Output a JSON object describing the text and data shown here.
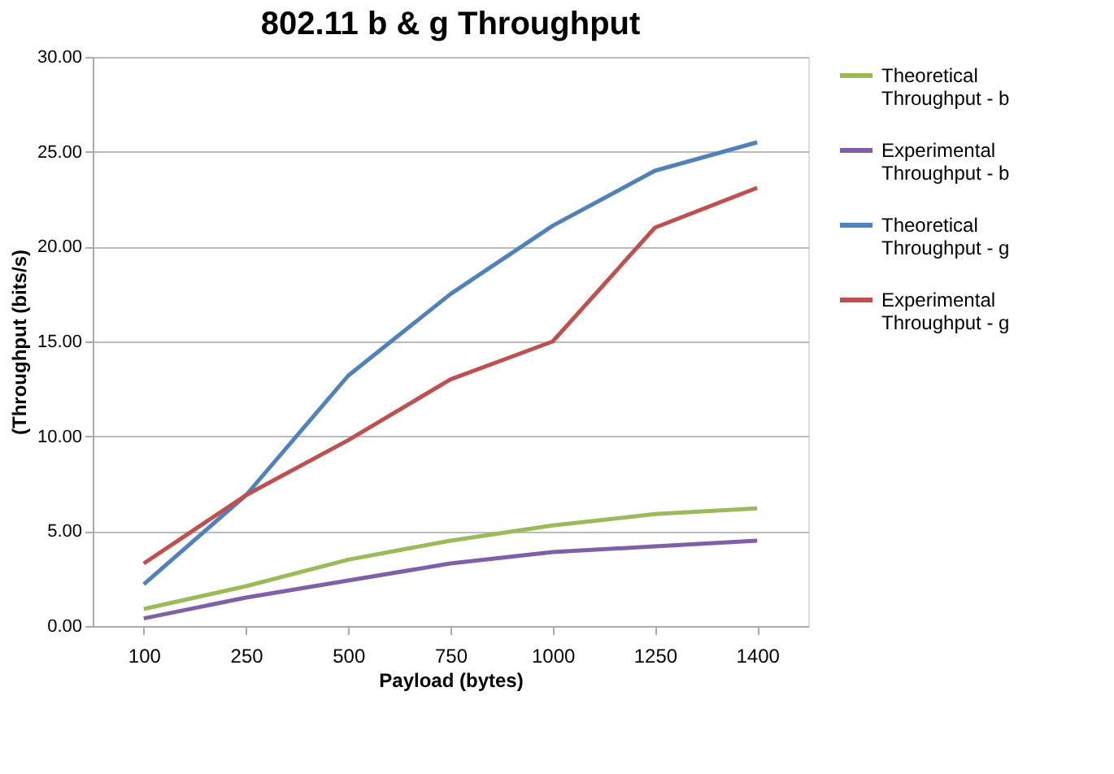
{
  "chart_data": {
    "type": "line",
    "title": "802.11 b & g Throughput",
    "xlabel": "Payload (bytes)",
    "ylabel": "(Throughput (bits/s)",
    "categories": [
      "100",
      "250",
      "500",
      "750",
      "1000",
      "1250",
      "1400"
    ],
    "series": [
      {
        "name": "Theoretical Throughput - b",
        "color": "#9bbb59",
        "values": [
          0.9,
          2.1,
          3.5,
          4.5,
          5.3,
          5.9,
          6.2
        ]
      },
      {
        "name": "Experimental Throughput - b",
        "color": "#7f5fa8",
        "values": [
          0.4,
          1.5,
          2.4,
          3.3,
          3.9,
          4.2,
          4.5
        ]
      },
      {
        "name": "Theoretical Throughput - g",
        "color": "#4f81bd",
        "values": [
          2.2,
          6.9,
          13.2,
          17.5,
          21.1,
          24.0,
          25.5
        ]
      },
      {
        "name": "Experimental Throughput - g",
        "color": "#c0504d",
        "values": [
          3.3,
          6.9,
          9.8,
          13.0,
          15.0,
          21.0,
          23.1
        ]
      }
    ],
    "ylim": [
      0,
      30
    ],
    "yticks": [
      {
        "value": 0,
        "label": "0.00"
      },
      {
        "value": 5,
        "label": "5.00"
      },
      {
        "value": 10,
        "label": "10.00"
      },
      {
        "value": 15,
        "label": "15.00"
      },
      {
        "value": 20,
        "label": "20.00"
      },
      {
        "value": 25,
        "label": "25.00"
      },
      {
        "value": 30,
        "label": "30.00"
      }
    ],
    "grid": "y",
    "legend": "right",
    "marker": "none",
    "line_style": "solid"
  }
}
